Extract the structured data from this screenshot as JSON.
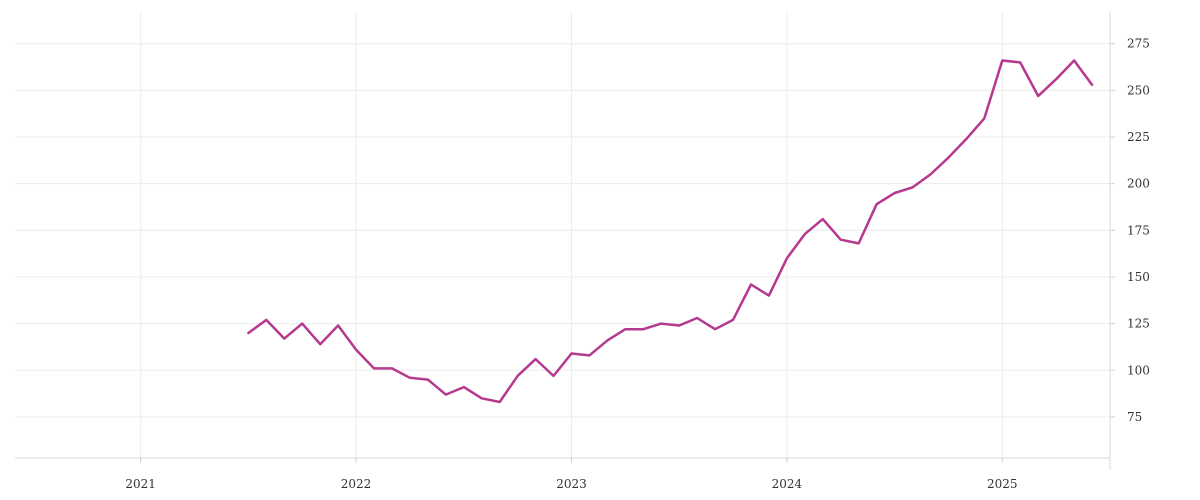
{
  "chart_data": {
    "type": "line",
    "title": "",
    "xlabel": "",
    "ylabel": "",
    "x_tick_labels": [
      "2021",
      "2022",
      "2023",
      "2024",
      "2025"
    ],
    "y_tick_labels": [
      "75",
      "100",
      "125",
      "150",
      "175",
      "200",
      "225",
      "250",
      "275"
    ],
    "xlim": [
      "2020-06",
      "2025-07"
    ],
    "ylim": [
      53,
      292
    ],
    "y_axis_position": "right",
    "grid": true,
    "legend": "none",
    "colors": {
      "series": "#b5398f"
    },
    "series": [
      {
        "x": [
          "2021-07",
          "2021-08",
          "2021-09",
          "2021-10",
          "2021-11",
          "2021-12",
          "2022-01",
          "2022-02",
          "2022-03",
          "2022-04",
          "2022-05",
          "2022-06",
          "2022-07",
          "2022-08",
          "2022-09",
          "2022-10",
          "2022-11",
          "2022-12",
          "2023-01",
          "2023-02",
          "2023-03",
          "2023-04",
          "2023-05",
          "2023-06",
          "2023-07",
          "2023-08",
          "2023-09",
          "2023-10",
          "2023-11",
          "2023-12",
          "2024-01",
          "2024-02",
          "2024-03",
          "2024-04",
          "2024-05",
          "2024-06",
          "2024-07",
          "2024-08",
          "2024-09",
          "2024-10",
          "2024-11",
          "2024-12",
          "2025-01",
          "2025-02",
          "2025-03",
          "2025-04",
          "2025-05",
          "2025-06"
        ],
        "values": [
          120,
          127,
          117,
          125,
          114,
          124,
          111,
          101,
          101,
          96,
          95,
          87,
          91,
          85,
          83,
          97,
          106,
          97,
          109,
          108,
          116,
          122,
          122,
          125,
          124,
          128,
          122,
          127,
          146,
          140,
          160,
          173,
          181,
          170,
          168,
          189,
          195,
          198,
          205,
          214,
          224,
          235,
          266,
          265,
          247,
          256,
          266,
          253
        ]
      }
    ]
  }
}
